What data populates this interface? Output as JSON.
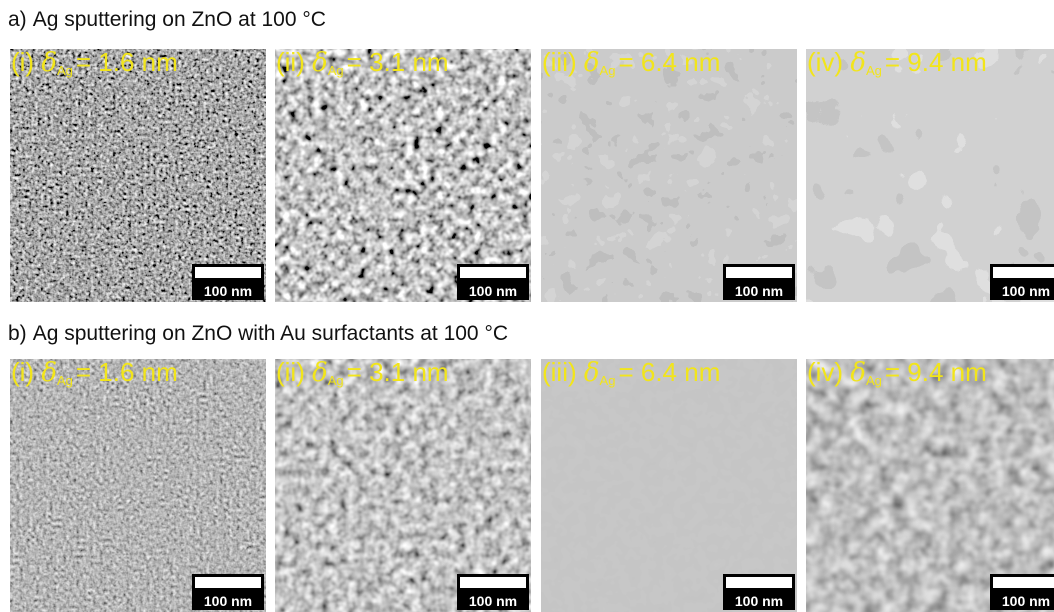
{
  "figure": {
    "rows": [
      {
        "letter": "a)",
        "title": "Ag sputtering on ZnO at 100 °C",
        "panels": [
          {
            "numeral": "(i)",
            "symbol": "δ",
            "subscript": "Ag",
            "value": "= 1.6 nm",
            "scale_label": "100 nm"
          },
          {
            "numeral": "(ii)",
            "symbol": "δ",
            "subscript": "Ag",
            "value": "= 3.1 nm",
            "scale_label": "100 nm"
          },
          {
            "numeral": "(iii)",
            "symbol": "δ",
            "subscript": "Ag",
            "value": "= 6.4 nm",
            "scale_label": "100 nm"
          },
          {
            "numeral": "(iv)",
            "symbol": "δ",
            "subscript": "Ag",
            "value": "= 9.4 nm",
            "scale_label": "100 nm"
          }
        ]
      },
      {
        "letter": "b)",
        "title": "Ag sputtering on ZnO with Au surfactants at 100 °C",
        "panels": [
          {
            "numeral": "(i)",
            "symbol": "δ",
            "subscript": "Ag",
            "value": "= 1.6 nm",
            "scale_label": "100 nm"
          },
          {
            "numeral": "(ii)",
            "symbol": "δ",
            "subscript": "Ag",
            "value": "= 3.1 nm",
            "scale_label": "100 nm"
          },
          {
            "numeral": "(iii)",
            "symbol": "δ",
            "subscript": "Ag",
            "value": "= 6.4 nm",
            "scale_label": "100 nm"
          },
          {
            "numeral": "(iv)",
            "symbol": "δ",
            "subscript": "Ag",
            "value": "= 9.4 nm",
            "scale_label": "100 nm"
          }
        ]
      }
    ],
    "colors": {
      "label": "#f2e51a",
      "scalebar_bg": "#000000",
      "scalebar_fg": "#ffffff"
    }
  }
}
